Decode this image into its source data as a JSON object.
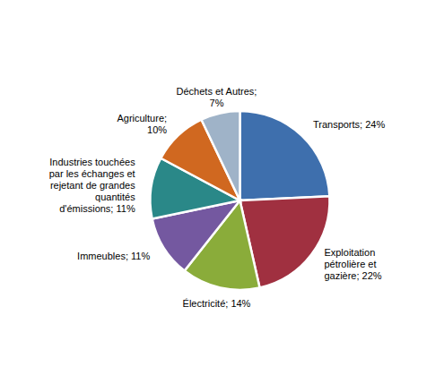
{
  "chart_data": {
    "type": "pie",
    "categories": [
      "Transports; 24%",
      "Exploitation\npétrolière et\ngazière; 22%",
      "Électricité; 14%",
      "Immeubles; 11%",
      "Industries touchées\npar les échanges et\nrejetant de grandes\nquantités\nd'émissions; 11%",
      "Agriculture;\n10%",
      "Déchets et Autres;\n7%"
    ],
    "values": [
      24,
      22,
      14,
      11,
      11,
      10,
      7
    ],
    "colors": [
      "#3e6fad",
      "#a03040",
      "#8aac3a",
      "#7458a0",
      "#2a8888",
      "#d06820",
      "#9fb3c8"
    ]
  }
}
